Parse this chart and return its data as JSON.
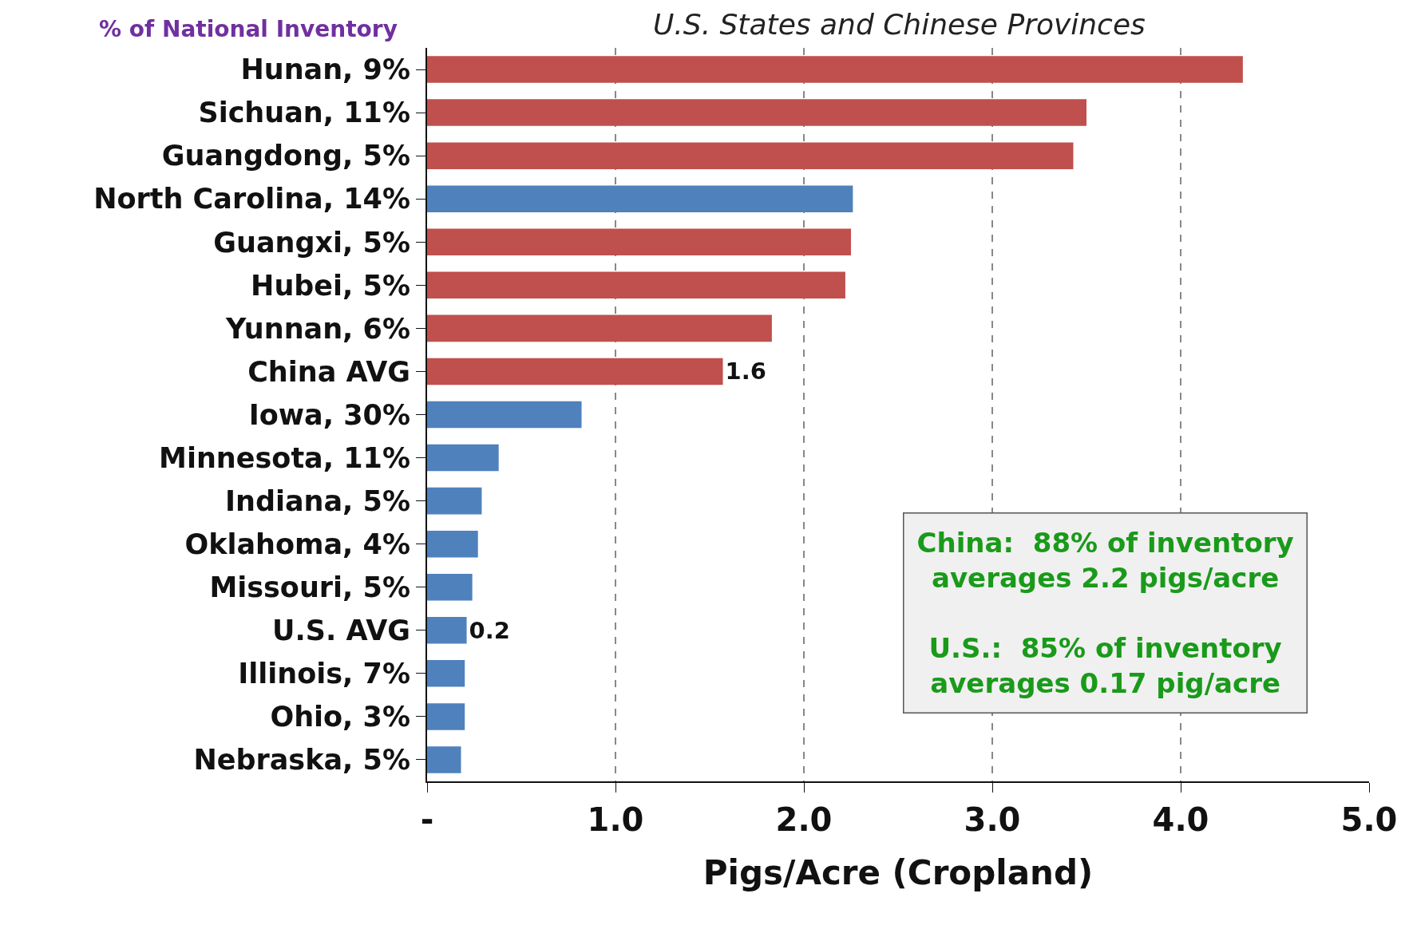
{
  "chart_data": {
    "type": "bar",
    "orientation": "horizontal",
    "title": "U.S. States and Chinese Provinces",
    "xlabel": "Pigs/Acre (Cropland)",
    "categories": [
      "Hunan, 9%",
      "Sichuan, 11%",
      "Guangdong, 5%",
      "North Carolina, 14%",
      "Guangxi, 5%",
      "Hubei, 5%",
      "Yunnan, 6%",
      "China AVG",
      "Iowa, 30%",
      "Minnesota, 11%",
      "Indiana, 5%",
      "Oklahoma, 4%",
      "Missouri, 5%",
      "U.S. AVG",
      "Illinois, 7%",
      "Ohio, 3%",
      "Nebraska, 5%"
    ],
    "values": [
      4.33,
      3.5,
      3.43,
      2.26,
      2.25,
      2.22,
      1.83,
      1.57,
      0.82,
      0.38,
      0.29,
      0.27,
      0.24,
      0.21,
      0.2,
      0.2,
      0.18
    ],
    "colors": [
      "#c0504d",
      "#c0504d",
      "#c0504d",
      "#4f81bd",
      "#c0504d",
      "#c0504d",
      "#c0504d",
      "#c0504d",
      "#4f81bd",
      "#4f81bd",
      "#4f81bd",
      "#4f81bd",
      "#4f81bd",
      "#4f81bd",
      "#4f81bd",
      "#4f81bd",
      "#4f81bd"
    ],
    "value_labels": [
      null,
      null,
      null,
      null,
      null,
      null,
      null,
      "1.6",
      null,
      null,
      null,
      null,
      null,
      "0.2",
      null,
      null,
      null
    ],
    "xlim": [
      0,
      5
    ],
    "xticks": [
      {
        "value": 0,
        "label": "-"
      },
      {
        "value": 1,
        "label": "1.0"
      },
      {
        "value": 2,
        "label": "2.0"
      },
      {
        "value": 3,
        "label": "3.0"
      },
      {
        "value": 4,
        "label": "4.0"
      },
      {
        "value": 5,
        "label": "5.0"
      }
    ],
    "grid": "x",
    "annotations": [
      "% of National Inventory",
      "China:  88% of inventory\naverages 2.2 pigs/acre\n\nU.S.:  85% of inventory\naverages 0.17 pig/acre"
    ]
  }
}
